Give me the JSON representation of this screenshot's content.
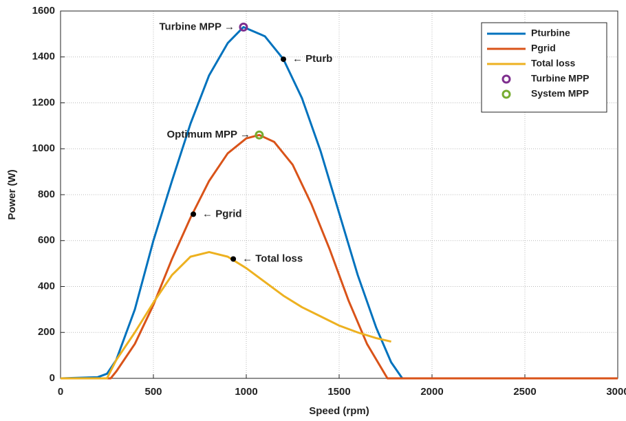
{
  "chart_data": {
    "type": "line",
    "xlabel": "Speed (rpm)",
    "ylabel": "Power (W)",
    "xlim": [
      0,
      3000
    ],
    "ylim": [
      0,
      1600
    ],
    "xticks": [
      0,
      500,
      1000,
      1500,
      2000,
      2500,
      3000
    ],
    "yticks": [
      0,
      200,
      400,
      600,
      800,
      1000,
      1200,
      1400,
      1600
    ],
    "grid": true,
    "legend": "upper right",
    "series": [
      {
        "name": "Pturbine",
        "color": "#0072bd",
        "style": "line",
        "x": [
          0,
          200,
          250,
          300,
          400,
          500,
          600,
          700,
          800,
          900,
          985,
          1100,
          1200,
          1300,
          1400,
          1500,
          1600,
          1700,
          1780,
          1840,
          3000
        ],
        "values": [
          0,
          5,
          20,
          80,
          300,
          600,
          860,
          1110,
          1320,
          1460,
          1530,
          1490,
          1390,
          1220,
          990,
          720,
          450,
          220,
          70,
          0,
          0
        ]
      },
      {
        "name": "Pgrid",
        "color": "#d95319",
        "style": "line",
        "x": [
          0,
          270,
          300,
          400,
          500,
          600,
          700,
          800,
          900,
          1000,
          1070,
          1150,
          1250,
          1350,
          1450,
          1550,
          1650,
          1760,
          3000
        ],
        "values": [
          0,
          0,
          30,
          150,
          320,
          520,
          700,
          860,
          980,
          1045,
          1060,
          1030,
          930,
          760,
          560,
          340,
          150,
          0,
          0
        ]
      },
      {
        "name": "Total loss",
        "color": "#edb120",
        "style": "line",
        "x": [
          0,
          250,
          300,
          400,
          500,
          600,
          700,
          800,
          900,
          1000,
          1100,
          1200,
          1300,
          1400,
          1500,
          1600,
          1700,
          1780
        ],
        "values": [
          0,
          0,
          80,
          200,
          330,
          450,
          530,
          550,
          530,
          480,
          420,
          360,
          310,
          270,
          230,
          200,
          175,
          160
        ]
      },
      {
        "name": "Turbine MPP",
        "color": "#7e2f8e",
        "style": "marker",
        "x": [
          985
        ],
        "values": [
          1530
        ]
      },
      {
        "name": "System MPP",
        "color": "#77ac30",
        "style": "marker",
        "x": [
          1070
        ],
        "values": [
          1060
        ]
      }
    ],
    "annotations": [
      {
        "text": "Turbine MPP →",
        "x": 985,
        "y": 1530,
        "dot": false
      },
      {
        "text": "← Pturb",
        "x": 1200,
        "y": 1390,
        "dot": true
      },
      {
        "text": "Optimum MPP →",
        "x": 1070,
        "y": 1060,
        "dot": false
      },
      {
        "text": "← Pgrid",
        "x": 715,
        "y": 715,
        "dot": true
      },
      {
        "text": "← Total loss",
        "x": 930,
        "y": 520,
        "dot": true
      }
    ]
  }
}
